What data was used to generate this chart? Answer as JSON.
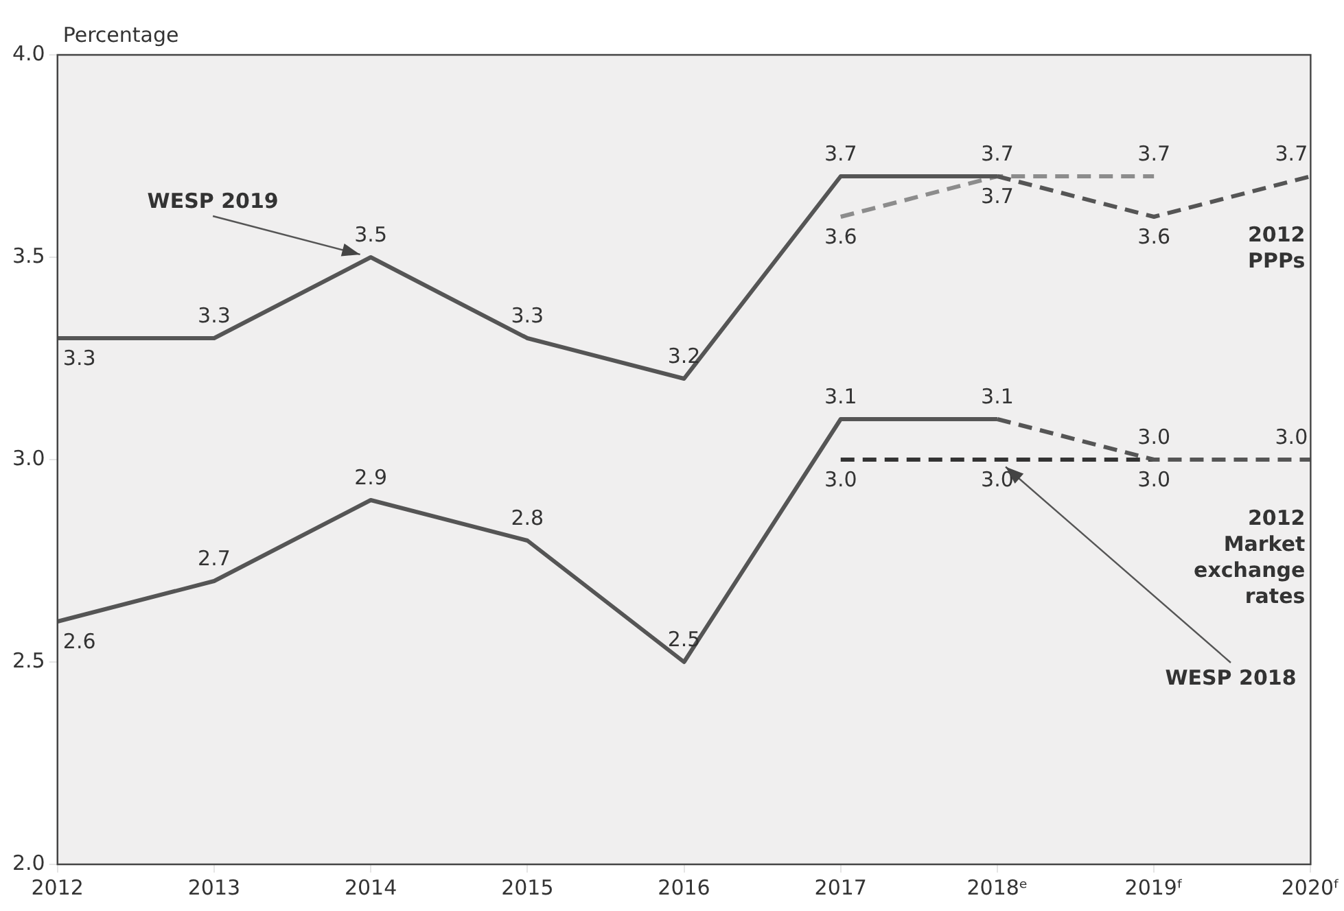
{
  "chart_data": {
    "type": "line",
    "ylabel": "Percentage",
    "categories": [
      "2012",
      "2013",
      "2014",
      "2015",
      "2016",
      "2017",
      "2018ᵉ",
      "2019ᶠ",
      "2020ᶠ"
    ],
    "series": [
      {
        "color": "#555555",
        "line_style": "solid",
        "values": [
          3.3,
          3.3,
          3.5,
          3.3,
          3.2,
          3.7,
          3.7,
          null,
          null
        ],
        "value_labels": [
          "3.3",
          "3.3",
          "3.5",
          "3.3",
          "3.2",
          "3.7",
          "3.7",
          null,
          null
        ]
      },
      {
        "color": "#555555",
        "line_style": "dashed",
        "values": [
          null,
          null,
          null,
          null,
          null,
          null,
          3.7,
          3.6,
          3.7
        ],
        "value_labels": [
          null,
          null,
          null,
          null,
          null,
          null,
          null,
          "3.6",
          "3.7"
        ]
      },
      {
        "color": "#8c8c8c",
        "line_style": "dashed",
        "values": [
          null,
          null,
          null,
          null,
          null,
          3.6,
          3.7,
          3.7,
          null
        ],
        "value_labels": [
          null,
          null,
          null,
          null,
          null,
          "3.6",
          "3.7",
          "3.7",
          null
        ]
      },
      {
        "color": "#555555",
        "line_style": "solid",
        "values": [
          2.6,
          2.7,
          2.9,
          2.8,
          2.5,
          3.1,
          3.1,
          null,
          null
        ],
        "value_labels": [
          "2.6",
          "2.7",
          "2.9",
          "2.8",
          "2.5",
          "3.1",
          "3.1",
          null,
          null
        ]
      },
      {
        "color": "#555555",
        "line_style": "dashed",
        "values": [
          null,
          null,
          null,
          null,
          null,
          null,
          3.1,
          3.0,
          3.0
        ],
        "value_labels": [
          null,
          null,
          null,
          null,
          null,
          null,
          null,
          "3.0",
          "3.0"
        ]
      },
      {
        "color": "#333333",
        "line_style": "dashed",
        "values": [
          null,
          null,
          null,
          null,
          null,
          3.0,
          3.0,
          3.0,
          null
        ],
        "value_labels": [
          null,
          null,
          null,
          null,
          null,
          "3.0",
          "3.0",
          "3.0",
          null
        ]
      }
    ],
    "ylim": [
      2,
      4
    ],
    "yticks": [
      {
        "value": 2,
        "label": "2.0"
      },
      {
        "value": 2.5,
        "label": "2.5"
      },
      {
        "value": 3,
        "label": "3.0"
      },
      {
        "value": 3.5,
        "label": "3.5"
      },
      {
        "value": 4,
        "label": "4.0"
      }
    ],
    "grid": false,
    "legend": false,
    "marker": "none",
    "annotations": [
      {
        "text": "WESP 2019",
        "x": "2014",
        "y": 3.5
      },
      {
        "text": "WESP 2018",
        "x": "2018ᵉ",
        "y": 3.0
      },
      {
        "text": "2012\nPPPs",
        "x": "2020ᶠ",
        "y": 3.7
      },
      {
        "text": "2012\nMarket\nexchange\nrates",
        "x": "2020ᶠ",
        "y": 3.0
      }
    ]
  }
}
